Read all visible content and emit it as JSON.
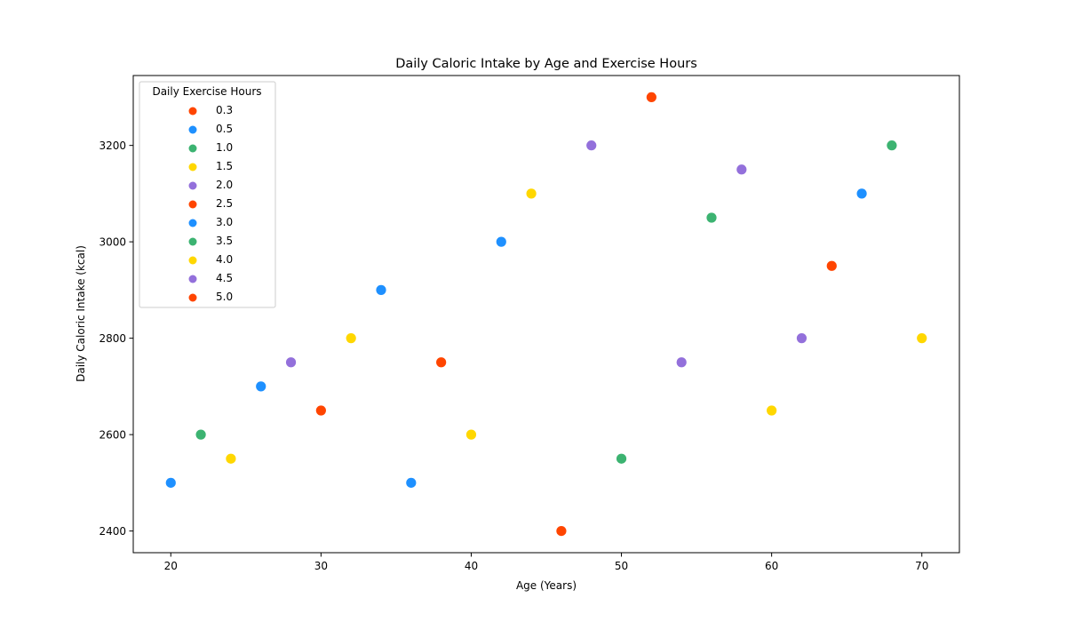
{
  "chart_data": {
    "type": "scatter",
    "title": "Daily Caloric Intake by Age and Exercise Hours",
    "xlabel": "Age (Years)",
    "ylabel": "Daily Caloric Intake (kcal)",
    "xlim": [
      17.5,
      72.5
    ],
    "ylim": [
      2355,
      3345
    ],
    "xticks": [
      20,
      30,
      40,
      50,
      60,
      70
    ],
    "yticks": [
      2400,
      2600,
      2800,
      3000,
      3200
    ],
    "grid": false,
    "legend": {
      "title": "Daily Exercise Hours",
      "placement": "upper-left",
      "entries": [
        {
          "label": "0.3",
          "color": "#FF4500"
        },
        {
          "label": "0.5",
          "color": "#1E90FF"
        },
        {
          "label": "1.0",
          "color": "#3CB371"
        },
        {
          "label": "1.5",
          "color": "#FFD700"
        },
        {
          "label": "2.0",
          "color": "#9370DB"
        },
        {
          "label": "2.5",
          "color": "#FF4500"
        },
        {
          "label": "3.0",
          "color": "#1E90FF"
        },
        {
          "label": "3.5",
          "color": "#3CB371"
        },
        {
          "label": "4.0",
          "color": "#FFD700"
        },
        {
          "label": "4.5",
          "color": "#9370DB"
        },
        {
          "label": "5.0",
          "color": "#FF4500"
        }
      ]
    },
    "points": [
      {
        "x": 20,
        "y": 2500,
        "color": "#1E90FF"
      },
      {
        "x": 22,
        "y": 2600,
        "color": "#3CB371"
      },
      {
        "x": 24,
        "y": 2550,
        "color": "#FFD700"
      },
      {
        "x": 26,
        "y": 2700,
        "color": "#1E90FF"
      },
      {
        "x": 28,
        "y": 2750,
        "color": "#9370DB"
      },
      {
        "x": 30,
        "y": 2650,
        "color": "#FF4500"
      },
      {
        "x": 32,
        "y": 2800,
        "color": "#FFD700"
      },
      {
        "x": 34,
        "y": 2900,
        "color": "#1E90FF"
      },
      {
        "x": 36,
        "y": 2500,
        "color": "#1E90FF"
      },
      {
        "x": 38,
        "y": 2750,
        "color": "#FF4500"
      },
      {
        "x": 40,
        "y": 2600,
        "color": "#FFD700"
      },
      {
        "x": 42,
        "y": 3000,
        "color": "#1E90FF"
      },
      {
        "x": 44,
        "y": 3100,
        "color": "#FFD700"
      },
      {
        "x": 46,
        "y": 2400,
        "color": "#FF4500"
      },
      {
        "x": 48,
        "y": 3200,
        "color": "#9370DB"
      },
      {
        "x": 50,
        "y": 2550,
        "color": "#3CB371"
      },
      {
        "x": 52,
        "y": 3300,
        "color": "#FF4500"
      },
      {
        "x": 54,
        "y": 2750,
        "color": "#9370DB"
      },
      {
        "x": 56,
        "y": 3050,
        "color": "#3CB371"
      },
      {
        "x": 58,
        "y": 3150,
        "color": "#9370DB"
      },
      {
        "x": 60,
        "y": 2650,
        "color": "#FFD700"
      },
      {
        "x": 62,
        "y": 2800,
        "color": "#9370DB"
      },
      {
        "x": 64,
        "y": 2950,
        "color": "#FF4500"
      },
      {
        "x": 66,
        "y": 3100,
        "color": "#1E90FF"
      },
      {
        "x": 68,
        "y": 3200,
        "color": "#3CB371"
      },
      {
        "x": 70,
        "y": 2800,
        "color": "#FFD700"
      }
    ]
  }
}
